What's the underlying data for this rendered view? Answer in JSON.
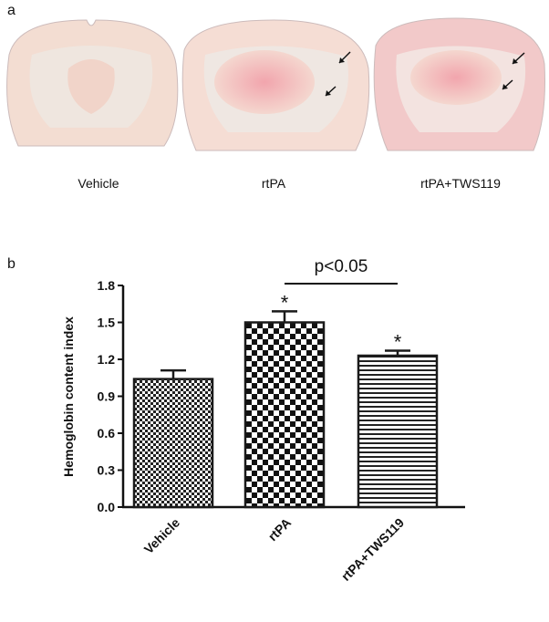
{
  "panel_a": {
    "label": "a",
    "captions": [
      "Vehicle",
      "rtPA",
      "rtPA+TWS119"
    ]
  },
  "chart_data": {
    "type": "bar",
    "panel_label": "b",
    "y_label": "Hemoglobin content index",
    "categories": [
      "Vehicle",
      "rtPA",
      "rtPA+TWS119"
    ],
    "values": [
      1.04,
      1.5,
      1.23
    ],
    "errors": [
      0.07,
      0.09,
      0.04
    ],
    "value_annotations": [
      null,
      "*",
      "*"
    ],
    "comparison_label": "p<0.05",
    "color": "#1a1a1a",
    "ylim": [
      0,
      1.8
    ],
    "yticks": [
      {
        "value": 0,
        "label": "0.0"
      },
      0.3,
      0.6,
      0.9,
      1.2,
      1.5,
      1.8
    ]
  }
}
